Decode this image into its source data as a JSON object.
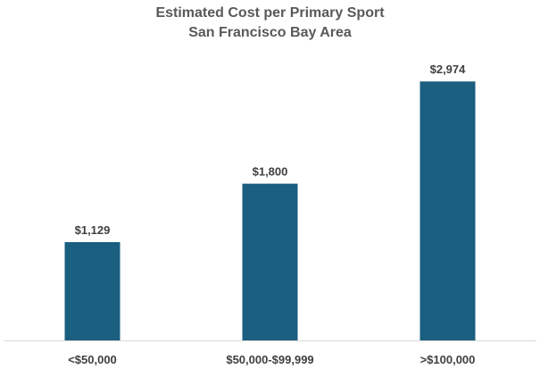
{
  "chart_data": {
    "type": "bar",
    "title": "Estimated Cost per Primary Sport",
    "subtitle": "San Francisco Bay Area",
    "categories": [
      "<$50,000",
      "$50,000-$99,999",
      ">$100,000"
    ],
    "values": [
      1129,
      1800,
      2974
    ],
    "value_labels": [
      "$1,129",
      "$1,800",
      "$2,974"
    ],
    "xlabel": "",
    "ylabel": "",
    "ylim": [
      0,
      3500
    ],
    "grid": false,
    "legend": "none",
    "bar_color": "#1a5e80"
  }
}
